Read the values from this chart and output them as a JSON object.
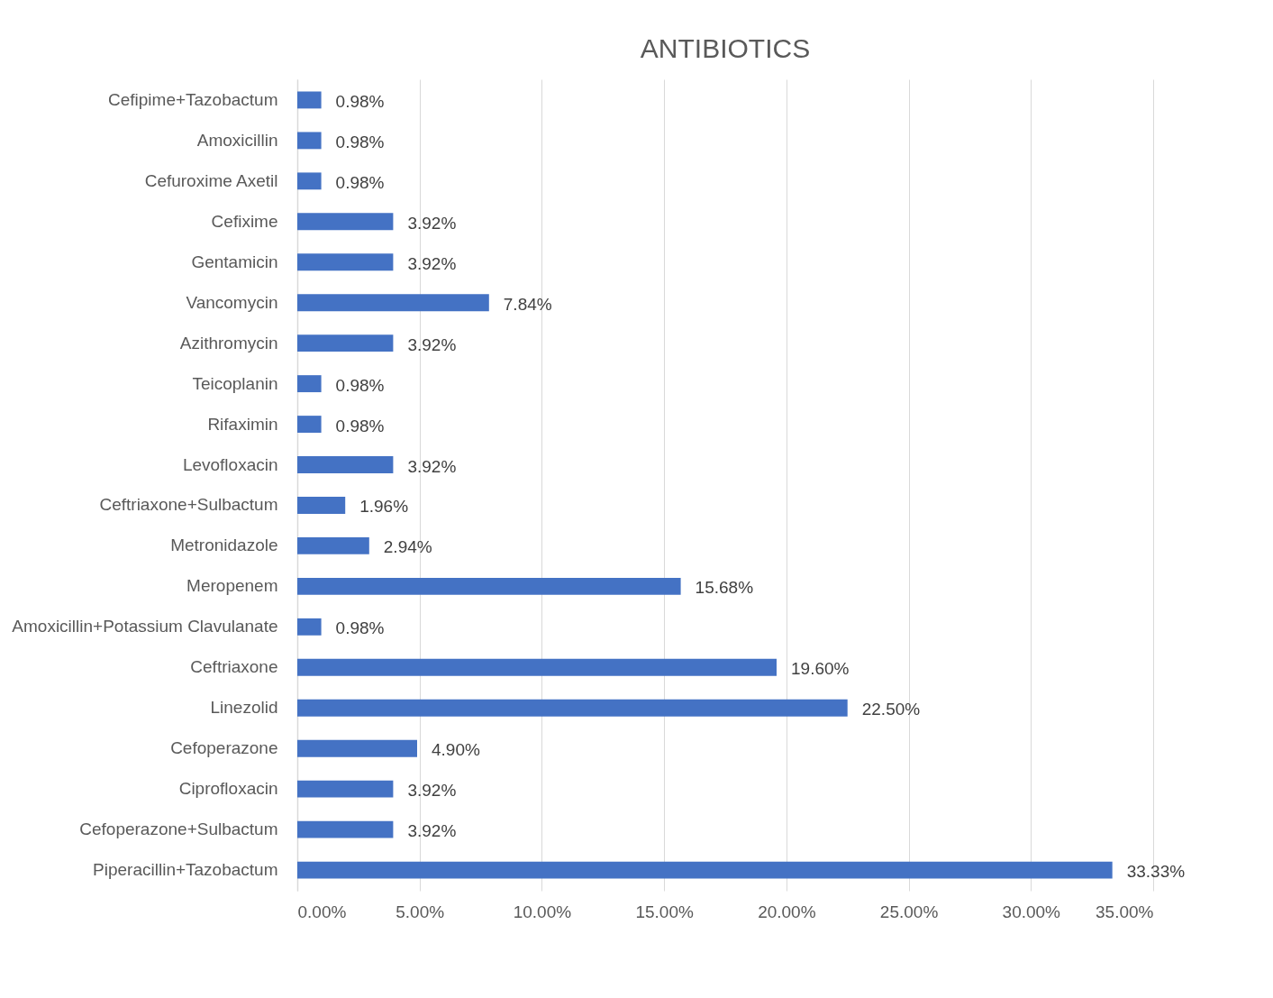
{
  "chart_data": {
    "type": "bar",
    "title": "ANTIBIOTICS",
    "orientation": "horizontal",
    "categories": [
      "Cefipime+Tazobactum",
      "Amoxicillin",
      "Cefuroxime Axetil",
      "Cefixime",
      "Gentamicin",
      "Vancomycin",
      "Azithromycin",
      "Teicoplanin",
      "Rifaximin",
      "Levofloxacin",
      "Ceftriaxone+Sulbactum",
      "Metronidazole",
      "Meropenem",
      "Amoxicillin+Potassium Clavulanate",
      "Ceftriaxone",
      "Linezolid",
      "Cefoperazone",
      "Ciprofloxacin",
      "Cefoperazone+Sulbactum",
      "Piperacillin+Tazobactum"
    ],
    "values": [
      0.98,
      0.98,
      0.98,
      3.92,
      3.92,
      7.84,
      3.92,
      0.98,
      0.98,
      3.92,
      1.96,
      2.94,
      15.68,
      0.98,
      19.6,
      22.5,
      4.9,
      3.92,
      3.92,
      33.33
    ],
    "value_labels": [
      "0.98%",
      "0.98%",
      "0.98%",
      "3.92%",
      "3.92%",
      "7.84%",
      "3.92%",
      "0.98%",
      "0.98%",
      "3.92%",
      "1.96%",
      "2.94%",
      "15.68%",
      "0.98%",
      "19.60%",
      "22.50%",
      "4.90%",
      "3.92%",
      "3.92%",
      "33.33%"
    ],
    "color": "#4472c4",
    "xlim": [
      0,
      35
    ],
    "xticks": [
      {
        "value": 0,
        "label": "0.00%"
      },
      {
        "value": 5,
        "label": "5.00%"
      },
      {
        "value": 10,
        "label": "10.00%"
      },
      {
        "value": 15,
        "label": "15.00%"
      },
      {
        "value": 20,
        "label": "20.00%"
      },
      {
        "value": 25,
        "label": "25.00%"
      },
      {
        "value": 30,
        "label": "30.00%"
      },
      {
        "value": 35,
        "label": "35.00%"
      }
    ],
    "grid": "x"
  }
}
